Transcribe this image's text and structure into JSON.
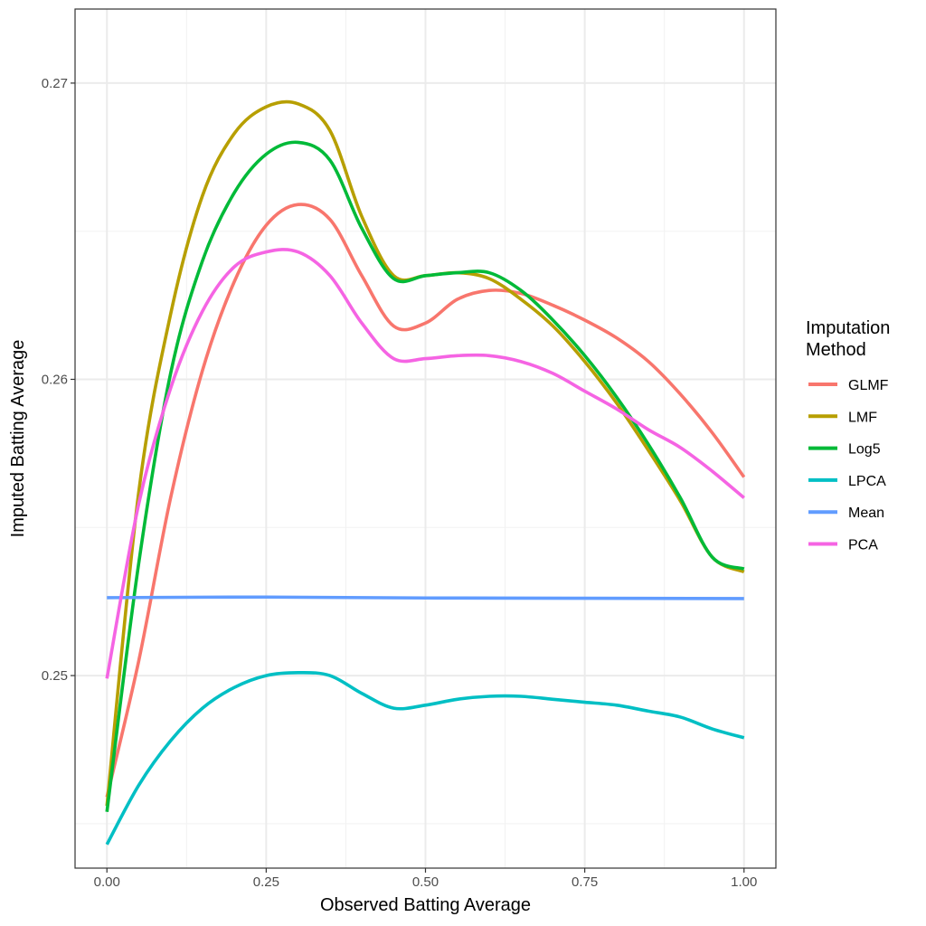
{
  "chart_data": {
    "type": "line",
    "xlabel": "Observed Batting Average",
    "ylabel": "Imputed Batting Average",
    "xlim": [
      -0.05,
      1.05
    ],
    "ylim": [
      0.2435,
      0.2725
    ],
    "x_ticks": [
      0.0,
      0.25,
      0.5,
      0.75,
      1.0
    ],
    "x_tick_labels": [
      "0.00",
      "0.25",
      "0.50",
      "0.75",
      "1.00"
    ],
    "y_ticks": [
      0.25,
      0.26,
      0.27
    ],
    "y_tick_labels": [
      "0.25",
      "0.26",
      "0.27"
    ],
    "grid": true,
    "legend": {
      "title_line1": "Imputation",
      "title_line2": "Method",
      "placement": "right"
    },
    "series": [
      {
        "name": "GLMF",
        "color": "#F8766D",
        "x": [
          0.0,
          0.05,
          0.1,
          0.15,
          0.2,
          0.25,
          0.3,
          0.35,
          0.4,
          0.45,
          0.5,
          0.55,
          0.6,
          0.65,
          0.7,
          0.75,
          0.8,
          0.85,
          0.9,
          0.95,
          1.0
        ],
        "y": [
          0.2459,
          0.2505,
          0.256,
          0.2603,
          0.2633,
          0.2652,
          0.2659,
          0.2654,
          0.2635,
          0.2618,
          0.2619,
          0.2627,
          0.263,
          0.2629,
          0.2625,
          0.262,
          0.2614,
          0.2606,
          0.2595,
          0.2582,
          0.2567
        ]
      },
      {
        "name": "LMF",
        "color": "#B79F00",
        "x": [
          0.0,
          0.05,
          0.1,
          0.15,
          0.2,
          0.25,
          0.3,
          0.35,
          0.4,
          0.45,
          0.5,
          0.55,
          0.6,
          0.65,
          0.7,
          0.75,
          0.8,
          0.85,
          0.9,
          0.95,
          1.0
        ],
        "y": [
          0.2456,
          0.2562,
          0.2622,
          0.2662,
          0.2683,
          0.2692,
          0.2693,
          0.2684,
          0.2655,
          0.2635,
          0.2635,
          0.2636,
          0.2634,
          0.2627,
          0.2618,
          0.2606,
          0.2592,
          0.2576,
          0.2559,
          0.254,
          0.2535
        ]
      },
      {
        "name": "Log5",
        "color": "#00BA38",
        "x": [
          0.0,
          0.05,
          0.1,
          0.15,
          0.2,
          0.25,
          0.3,
          0.35,
          0.4,
          0.45,
          0.5,
          0.55,
          0.6,
          0.65,
          0.7,
          0.75,
          0.8,
          0.85,
          0.9,
          0.95,
          1.0
        ],
        "y": [
          0.2454,
          0.2538,
          0.2602,
          0.264,
          0.2663,
          0.2676,
          0.268,
          0.2674,
          0.2651,
          0.2634,
          0.2635,
          0.2636,
          0.2636,
          0.263,
          0.262,
          0.2608,
          0.2594,
          0.2578,
          0.256,
          0.254,
          0.2536
        ]
      },
      {
        "name": "LPCA",
        "color": "#00BFC4",
        "x": [
          0.0,
          0.05,
          0.1,
          0.15,
          0.2,
          0.25,
          0.3,
          0.35,
          0.4,
          0.45,
          0.5,
          0.55,
          0.6,
          0.65,
          0.7,
          0.75,
          0.8,
          0.85,
          0.9,
          0.95,
          1.0
        ],
        "y": [
          0.2443,
          0.2463,
          0.2478,
          0.2489,
          0.2496,
          0.25,
          0.2501,
          0.25,
          0.2494,
          0.2489,
          0.249,
          0.2492,
          0.2493,
          0.2493,
          0.2492,
          0.2491,
          0.249,
          0.2488,
          0.2486,
          0.2482,
          0.2479
        ]
      },
      {
        "name": "Mean",
        "color": "#619CFF",
        "x": [
          0.0,
          0.25,
          0.5,
          0.75,
          1.0
        ],
        "y": [
          0.25263,
          0.25265,
          0.25262,
          0.25261,
          0.2526
        ]
      },
      {
        "name": "PCA",
        "color": "#F564E3",
        "x": [
          0.0,
          0.05,
          0.1,
          0.15,
          0.2,
          0.25,
          0.3,
          0.35,
          0.4,
          0.45,
          0.5,
          0.55,
          0.6,
          0.65,
          0.7,
          0.75,
          0.8,
          0.85,
          0.9,
          0.95,
          1.0
        ],
        "y": [
          0.2499,
          0.2558,
          0.2597,
          0.2623,
          0.2638,
          0.2643,
          0.2643,
          0.2635,
          0.2619,
          0.2607,
          0.2607,
          0.2608,
          0.2608,
          0.2606,
          0.2602,
          0.2596,
          0.259,
          0.2583,
          0.2577,
          0.2569,
          0.256
        ]
      }
    ]
  }
}
